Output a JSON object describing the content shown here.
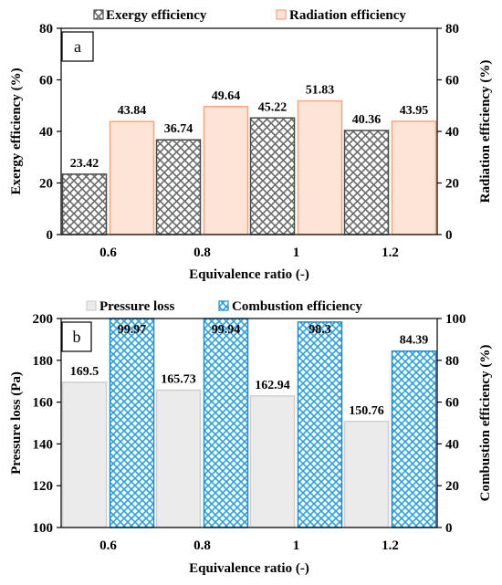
{
  "chart_data": [
    {
      "type": "bar",
      "panel_label": "a",
      "categories": [
        "0.6",
        "0.8",
        "1",
        "1.2"
      ],
      "xlabel": "Equivalence ratio (-)",
      "ylabel_left": "Exergy efficiency (%)",
      "ylabel_right": "Radiation efficiency (%)",
      "ylim_left": [
        0,
        80
      ],
      "ylim_right": [
        0,
        80
      ],
      "yticks_left": [
        "0",
        "20",
        "40",
        "60",
        "80"
      ],
      "yticks_right": [
        "0",
        "20",
        "40",
        "60",
        "80"
      ],
      "legend_placement": "top",
      "grid": false,
      "series": [
        {
          "name": "Exergy efficiency",
          "axis": "left",
          "values": [
            23.42,
            36.74,
            45.22,
            40.36
          ],
          "labels": [
            "23.42",
            "36.74",
            "45.22",
            "40.36"
          ],
          "fill": "#9e9e9e",
          "stroke": "#4a4a4a",
          "pattern": "crosshatch"
        },
        {
          "name": "Radiation efficiency",
          "axis": "right",
          "values": [
            43.84,
            49.64,
            51.83,
            43.95
          ],
          "labels": [
            "43.84",
            "49.64",
            "51.83",
            "43.95"
          ],
          "fill": "#fde4d6",
          "stroke": "#f4a77e",
          "pattern": "solid"
        }
      ]
    },
    {
      "type": "bar",
      "panel_label": "b",
      "categories": [
        "0.6",
        "0.8",
        "1",
        "1.2"
      ],
      "xlabel": "Equivalence ratio (-)",
      "ylabel_left": "Pressure loss (Pa)",
      "ylabel_right": "Combustion efficiency (%)",
      "ylim_left": [
        100,
        200
      ],
      "ylim_right": [
        0,
        100
      ],
      "yticks_left": [
        "100",
        "120",
        "140",
        "160",
        "180",
        "200"
      ],
      "yticks_right": [
        "0",
        "20",
        "40",
        "60",
        "80",
        "100"
      ],
      "legend_placement": "top",
      "grid": false,
      "series": [
        {
          "name": "Pressure loss",
          "axis": "left",
          "values": [
            169.5,
            165.73,
            162.94,
            150.76
          ],
          "labels": [
            "169.5",
            "165.73",
            "162.94",
            "150.76"
          ],
          "fill": "#ebebeb",
          "stroke": "#cfcfcf",
          "pattern": "solid"
        },
        {
          "name": "Combustion efficiency",
          "axis": "right",
          "values": [
            99.97,
            99.94,
            98.3,
            84.39
          ],
          "labels": [
            "99.97",
            "99.94",
            "98.3",
            "84.39"
          ],
          "fill": "#2f9fd8",
          "stroke": "#1f8ccc",
          "pattern": "diamond"
        }
      ]
    }
  ]
}
